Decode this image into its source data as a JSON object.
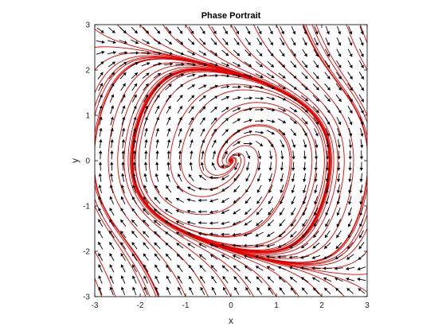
{
  "chart_data": {
    "type": "streamplot",
    "title": "Phase Portrait",
    "xlabel": "x",
    "ylabel": "y",
    "xlim": [
      -3,
      3
    ],
    "ylim": [
      -3,
      3
    ],
    "xticks": [
      -3,
      -2,
      -1,
      0,
      1,
      2,
      3
    ],
    "yticks": [
      -3,
      -2,
      -1,
      0,
      1,
      2,
      3
    ],
    "grid": false,
    "system": {
      "dx": "y",
      "dy": "-x - y^3/3 + y"
    },
    "quiver_color": "#000000",
    "trajectory_color": "#e00000",
    "quiver_grid_step": 0.25,
    "trajectory_seeds": [
      [
        -3,
        2.9
      ],
      [
        -3,
        2.5
      ],
      [
        -3,
        2.0
      ],
      [
        -3,
        1.5
      ],
      [
        -3,
        1.0
      ],
      [
        -3,
        0.6
      ],
      [
        -3,
        0.4
      ],
      [
        -3,
        0.3
      ],
      [
        -3,
        -0.3
      ],
      [
        -3,
        -1.0
      ],
      [
        -3,
        -2.0
      ],
      [
        -3,
        -2.6
      ],
      [
        3,
        -2.9
      ],
      [
        3,
        -2.5
      ],
      [
        3,
        -2.0
      ],
      [
        3,
        -1.5
      ],
      [
        3,
        -1.0
      ],
      [
        3,
        -0.6
      ],
      [
        3,
        -0.4
      ],
      [
        3,
        -0.3
      ],
      [
        3,
        0.3
      ],
      [
        3,
        1.0
      ],
      [
        3,
        2.0
      ],
      [
        3,
        2.6
      ],
      [
        -2.5,
        3
      ],
      [
        -2.0,
        3
      ],
      [
        -1.5,
        3
      ],
      [
        -1.0,
        3
      ],
      [
        -0.5,
        3
      ],
      [
        0.0,
        3
      ],
      [
        0.5,
        3
      ],
      [
        1.0,
        3
      ],
      [
        2.5,
        -3
      ],
      [
        2.0,
        -3
      ],
      [
        1.5,
        -3
      ],
      [
        1.0,
        -3
      ],
      [
        0.5,
        -3
      ],
      [
        0.0,
        -3
      ],
      [
        -0.5,
        -3
      ],
      [
        -1.0,
        -3
      ],
      [
        0.1,
        0.0
      ],
      [
        0.3,
        0.0
      ],
      [
        0.6,
        0.0
      ],
      [
        1.0,
        0.0
      ],
      [
        1.3,
        0.0
      ],
      [
        -0.3,
        0.0
      ],
      [
        -0.7,
        0.0
      ],
      [
        -1.1,
        0.0
      ]
    ]
  }
}
